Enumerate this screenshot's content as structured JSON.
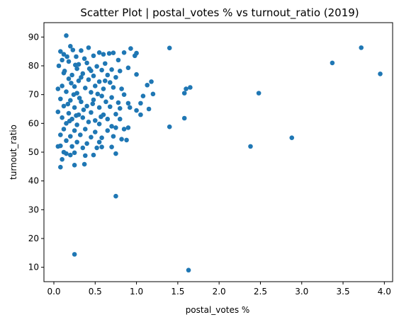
{
  "chart_data": {
    "type": "scatter",
    "title": "Scatter Plot | postal_votes % vs turnout_ratio (2019)",
    "xlabel": "postal_votes %",
    "ylabel": "turnout_ratio",
    "xlim": [
      -0.12,
      4.1
    ],
    "ylim": [
      5,
      95
    ],
    "xticks": [
      0.0,
      0.5,
      1.0,
      1.5,
      2.0,
      2.5,
      3.0,
      3.5,
      4.0
    ],
    "xtick_labels": [
      "0.0",
      "0.5",
      "1.0",
      "1.5",
      "2.0",
      "2.5",
      "3.0",
      "3.5",
      "4.0"
    ],
    "yticks": [
      10,
      20,
      30,
      40,
      50,
      60,
      70,
      80,
      90
    ],
    "ytick_labels": [
      "10",
      "20",
      "30",
      "40",
      "50",
      "60",
      "70",
      "80",
      "90"
    ],
    "grid": false,
    "marker_color": "#1f77b4",
    "points": [
      [
        0.15,
        90.5
      ],
      [
        0.2,
        86.8
      ],
      [
        0.23,
        85.5
      ],
      [
        0.08,
        85.0
      ],
      [
        0.33,
        85.3
      ],
      [
        0.42,
        86.3
      ],
      [
        0.55,
        84.6
      ],
      [
        0.6,
        84.0
      ],
      [
        0.67,
        84.3
      ],
      [
        0.72,
        84.5
      ],
      [
        0.85,
        84.6
      ],
      [
        0.93,
        86.0
      ],
      [
        0.12,
        84.0
      ],
      [
        0.27,
        83.2
      ],
      [
        0.37,
        82.5
      ],
      [
        0.48,
        83.5
      ],
      [
        0.78,
        82.0
      ],
      [
        0.98,
        83.5
      ],
      [
        1.0,
        84.4
      ],
      [
        0.06,
        80.0
      ],
      [
        0.1,
        82.0
      ],
      [
        0.18,
        81.5
      ],
      [
        0.3,
        80.5
      ],
      [
        0.4,
        81.0
      ],
      [
        0.52,
        79.8
      ],
      [
        0.62,
        80.8
      ],
      [
        0.9,
        79.3
      ],
      [
        0.28,
        79.0
      ],
      [
        0.45,
        78.3
      ],
      [
        0.58,
        78.5
      ],
      [
        0.7,
        78.7
      ],
      [
        0.8,
        78.2
      ],
      [
        1.0,
        77.0
      ],
      [
        0.12,
        77.5
      ],
      [
        0.22,
        76.8
      ],
      [
        0.35,
        77.3
      ],
      [
        0.48,
        76.5
      ],
      [
        0.65,
        76.8
      ],
      [
        0.75,
        76.0
      ],
      [
        0.18,
        75.5
      ],
      [
        0.3,
        74.8
      ],
      [
        0.42,
        75.2
      ],
      [
        0.55,
        74.5
      ],
      [
        0.68,
        74.2
      ],
      [
        1.18,
        74.5
      ],
      [
        1.13,
        73.3
      ],
      [
        0.1,
        73.0
      ],
      [
        0.25,
        72.8
      ],
      [
        0.38,
        72.3
      ],
      [
        0.5,
        73.0
      ],
      [
        0.6,
        72.0
      ],
      [
        0.72,
        72.5
      ],
      [
        0.82,
        72.0
      ],
      [
        0.05,
        72.0
      ],
      [
        0.15,
        71.0
      ],
      [
        0.28,
        70.5
      ],
      [
        0.45,
        70.8
      ],
      [
        0.58,
        69.5
      ],
      [
        0.7,
        69.0
      ],
      [
        0.85,
        70.0
      ],
      [
        1.2,
        70.2
      ],
      [
        1.08,
        69.5
      ],
      [
        0.08,
        68.5
      ],
      [
        0.2,
        68.0
      ],
      [
        0.33,
        67.5
      ],
      [
        0.48,
        68.2
      ],
      [
        0.63,
        67.5
      ],
      [
        0.78,
        67.2
      ],
      [
        0.9,
        67.0
      ],
      [
        1.05,
        67.0
      ],
      [
        0.12,
        66.0
      ],
      [
        0.25,
        65.5
      ],
      [
        0.4,
        66.0
      ],
      [
        0.55,
        65.5
      ],
      [
        0.68,
        65.8
      ],
      [
        0.8,
        65.2
      ],
      [
        0.92,
        65.5
      ],
      [
        1.0,
        64.5
      ],
      [
        1.15,
        65.0
      ],
      [
        0.05,
        64.0
      ],
      [
        0.18,
        63.5
      ],
      [
        0.3,
        63.0
      ],
      [
        0.45,
        63.8
      ],
      [
        0.6,
        63.0
      ],
      [
        0.75,
        63.2
      ],
      [
        1.05,
        63.0
      ],
      [
        0.1,
        62.0
      ],
      [
        0.22,
        61.5
      ],
      [
        0.35,
        62.0
      ],
      [
        0.5,
        61.0
      ],
      [
        0.65,
        61.5
      ],
      [
        0.8,
        61.5
      ],
      [
        0.15,
        60.0
      ],
      [
        0.28,
        59.5
      ],
      [
        0.42,
        60.5
      ],
      [
        0.55,
        59.8
      ],
      [
        0.7,
        59.0
      ],
      [
        0.75,
        58.5
      ],
      [
        0.85,
        58.0
      ],
      [
        0.9,
        58.5
      ],
      [
        0.12,
        58.0
      ],
      [
        0.25,
        57.5
      ],
      [
        0.38,
        58.0
      ],
      [
        0.5,
        57.0
      ],
      [
        0.65,
        57.5
      ],
      [
        0.08,
        56.0
      ],
      [
        0.2,
        55.5
      ],
      [
        0.32,
        56.0
      ],
      [
        0.45,
        55.2
      ],
      [
        0.58,
        55.0
      ],
      [
        0.72,
        55.5
      ],
      [
        0.82,
        54.5
      ],
      [
        0.88,
        54.2
      ],
      [
        0.15,
        54.0
      ],
      [
        0.28,
        53.5
      ],
      [
        0.4,
        53.0
      ],
      [
        0.55,
        53.5
      ],
      [
        0.05,
        52.0
      ],
      [
        0.08,
        52.2
      ],
      [
        0.22,
        52.0
      ],
      [
        0.35,
        51.5
      ],
      [
        0.52,
        51.5
      ],
      [
        0.58,
        51.8
      ],
      [
        0.7,
        51.8
      ],
      [
        0.12,
        50.0
      ],
      [
        0.25,
        49.8
      ],
      [
        0.38,
        48.8
      ],
      [
        0.48,
        49.0
      ],
      [
        0.75,
        49.5
      ],
      [
        0.2,
        49.0
      ],
      [
        0.15,
        49.5
      ],
      [
        0.1,
        47.5
      ],
      [
        0.08,
        44.8
      ],
      [
        0.25,
        45.5
      ],
      [
        0.37,
        45.8
      ],
      [
        1.6,
        72.0
      ],
      [
        1.65,
        72.5
      ],
      [
        1.58,
        70.5
      ],
      [
        1.58,
        61.8
      ],
      [
        1.4,
        86.2
      ],
      [
        1.4,
        58.8
      ],
      [
        2.48,
        70.5
      ],
      [
        2.38,
        52.0
      ],
      [
        2.88,
        55.0
      ],
      [
        3.37,
        81.0
      ],
      [
        3.72,
        86.3
      ],
      [
        3.95,
        77.2
      ],
      [
        0.75,
        34.7
      ],
      [
        0.25,
        14.5
      ],
      [
        1.63,
        9.0
      ],
      [
        0.13,
        78.2
      ],
      [
        0.21,
        74.0
      ],
      [
        0.24,
        70.0
      ],
      [
        0.31,
        68.8
      ],
      [
        0.17,
        66.7
      ],
      [
        0.36,
        64.7
      ],
      [
        0.27,
        62.7
      ],
      [
        0.19,
        60.8
      ],
      [
        0.33,
        76.0
      ],
      [
        0.26,
        80.3
      ],
      [
        0.43,
        79.0
      ],
      [
        0.16,
        83.2
      ],
      [
        0.53,
        70.2
      ],
      [
        0.62,
        74.8
      ],
      [
        0.47,
        66.8
      ],
      [
        0.57,
        62.3
      ]
    ]
  }
}
